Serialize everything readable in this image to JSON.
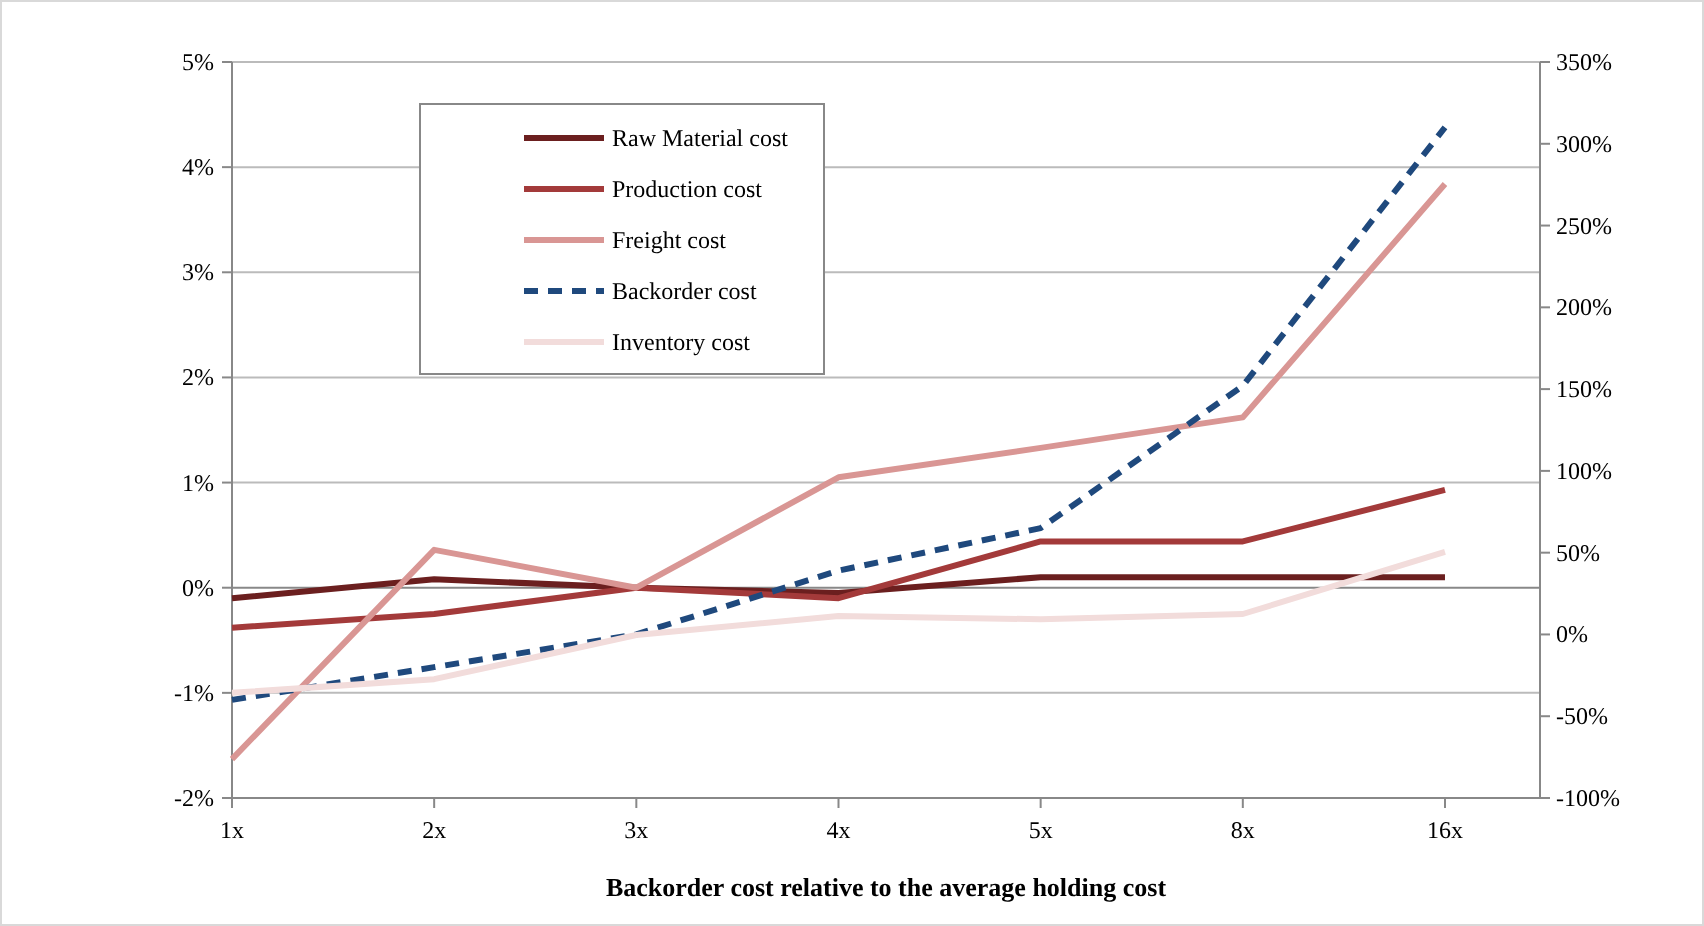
{
  "chart_data": {
    "type": "line",
    "xlabel": "Backorder cost relative to the average holding cost",
    "categories": [
      "1x",
      "2x",
      "3x",
      "4x",
      "5x",
      "8x",
      "16x"
    ],
    "ylim": [
      -2,
      5
    ],
    "yticks": [
      {
        "value": -2,
        "label": "-2%"
      },
      {
        "value": -1,
        "label": "-1%"
      },
      {
        "value": 0,
        "label": "0%"
      },
      {
        "value": 1,
        "label": "1%"
      },
      {
        "value": 2,
        "label": "2%"
      },
      {
        "value": 3,
        "label": "3%"
      },
      {
        "value": 4,
        "label": "4%"
      },
      {
        "value": 5,
        "label": "5%"
      }
    ],
    "y2lim": [
      -100,
      350
    ],
    "y2ticks": [
      {
        "value": -100,
        "label": "-100%"
      },
      {
        "value": -50,
        "label": "-50%"
      },
      {
        "value": 0,
        "label": "0%"
      },
      {
        "value": 50,
        "label": "50%"
      },
      {
        "value": 100,
        "label": "100%"
      },
      {
        "value": 150,
        "label": "150%"
      },
      {
        "value": 200,
        "label": "200%"
      },
      {
        "value": 250,
        "label": "250%"
      },
      {
        "value": 300,
        "label": "300%"
      },
      {
        "value": 350,
        "label": "350%"
      }
    ],
    "grid": "y",
    "legend": "top left",
    "marker": "none",
    "series": [
      {
        "name": "Raw Material cost",
        "color": "#6b1f1f",
        "values": [
          -0.1,
          0.08,
          0,
          -0.05,
          0.1,
          0.1,
          0.1
        ]
      },
      {
        "name": "Production cost",
        "color": "#a33a3a",
        "values": [
          -0.38,
          -0.25,
          0,
          -0.1,
          0.44,
          0.44,
          0.93
        ]
      },
      {
        "name": "Freight cost",
        "color": "#d99694",
        "values": [
          -1.63,
          0.36,
          0,
          1.05,
          1.33,
          1.62,
          3.84
        ]
      },
      {
        "name": "Backorder cost",
        "color": "#1f497d",
        "axis": "y2",
        "line_style": "dashed",
        "values": [
          -40,
          -20,
          0,
          39,
          65,
          152,
          310
        ]
      },
      {
        "name": "Inventory cost",
        "color": "#f2dcdb",
        "values": [
          -1.0,
          -0.87,
          -0.45,
          -0.27,
          -0.3,
          -0.25,
          0.34
        ]
      }
    ]
  }
}
